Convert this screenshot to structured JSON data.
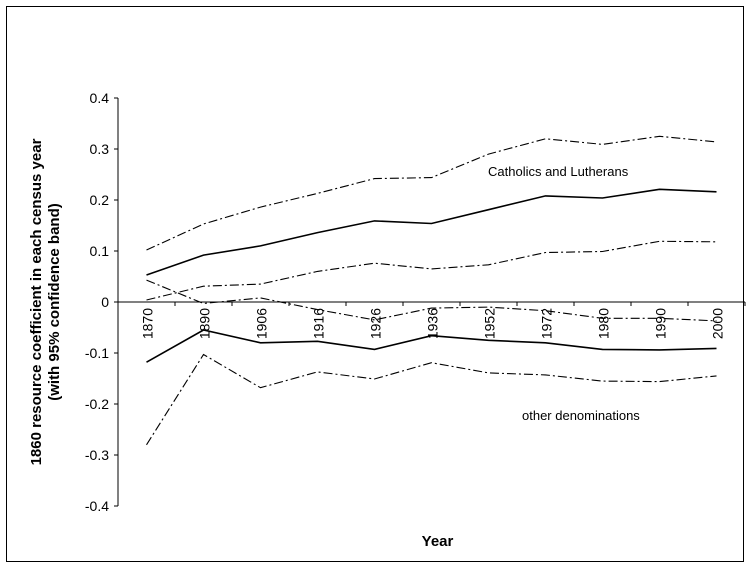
{
  "chart_data": {
    "type": "line",
    "xlabel": "Year",
    "ylabel_line1": "1860 resource coefficient in each census year",
    "ylabel_line2": "(with 95% confidence band)",
    "ylim": [
      -0.4,
      0.4
    ],
    "yticks": [
      "0.4",
      "0.3",
      "0.2",
      "0.1",
      "0",
      "-0.1",
      "-0.2",
      "-0.3",
      "-0.4"
    ],
    "ytick_values": [
      0.4,
      0.3,
      0.2,
      0.1,
      0,
      -0.1,
      -0.2,
      -0.3,
      -0.4
    ],
    "categories": [
      "1870",
      "1890",
      "1906",
      "1916",
      "1926",
      "1936",
      "1952",
      "1972",
      "1980",
      "1990",
      "2000"
    ],
    "grid": false,
    "legend": "none",
    "annotations": [
      {
        "text": "Catholics and Lutherans"
      },
      {
        "text": "other denominations"
      }
    ],
    "series": [
      {
        "group": "Catholics and Lutherans",
        "style": "solid",
        "values": [
          0.053,
          0.092,
          0.11,
          0.136,
          0.159,
          0.154,
          0.181,
          0.208,
          0.204,
          0.221,
          0.216
        ]
      },
      {
        "group": "Catholics and Lutherans",
        "style": "dashdot",
        "values": [
          0.102,
          0.153,
          0.186,
          0.213,
          0.242,
          0.244,
          0.29,
          0.32,
          0.309,
          0.325,
          0.314
        ]
      },
      {
        "group": "Catholics and Lutherans",
        "style": "dashdot",
        "values": [
          0.004,
          0.031,
          0.035,
          0.06,
          0.076,
          0.065,
          0.073,
          0.097,
          0.099,
          0.119,
          0.118
        ]
      },
      {
        "group": "other denominations",
        "style": "solid",
        "values": [
          -0.118,
          -0.055,
          -0.08,
          -0.077,
          -0.093,
          -0.066,
          -0.075,
          -0.08,
          -0.093,
          -0.094,
          -0.091
        ]
      },
      {
        "group": "other denominations",
        "style": "dashdot",
        "values": [
          0.043,
          -0.003,
          0.008,
          -0.015,
          -0.035,
          -0.012,
          -0.01,
          -0.017,
          -0.032,
          -0.032,
          -0.037
        ]
      },
      {
        "group": "other denominations",
        "style": "dashdot",
        "values": [
          -0.28,
          -0.103,
          -0.168,
          -0.137,
          -0.151,
          -0.119,
          -0.139,
          -0.143,
          -0.155,
          -0.156,
          -0.145
        ]
      }
    ]
  }
}
